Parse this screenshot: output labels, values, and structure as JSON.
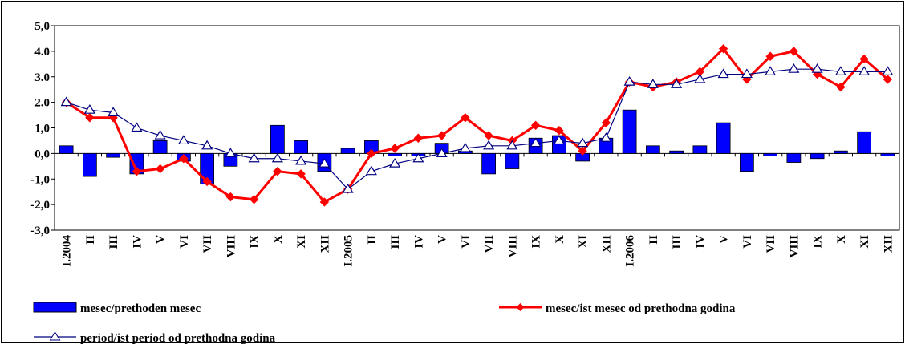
{
  "chart_data": {
    "type": "bar-line",
    "categories": [
      "I.2004",
      "II",
      "III",
      "IV",
      "V",
      "VI",
      "VII",
      "VIII",
      "IX",
      "X",
      "XI",
      "XII",
      "I.2005",
      "II",
      "III",
      "IV",
      "V",
      "VI",
      "VII",
      "VIII",
      "IX",
      "X",
      "XI",
      "XII",
      "I.2006",
      "II",
      "III",
      "IV",
      "V",
      "VI",
      "VII",
      "VIII",
      "IX",
      "X",
      "XI",
      "XII"
    ],
    "series": [
      {
        "name": "mesec/prethoden mesec",
        "type": "bar",
        "color": "#0000ff",
        "values": [
          0.3,
          -0.9,
          -0.15,
          -0.8,
          0.5,
          -0.3,
          -1.2,
          -0.5,
          0.0,
          1.1,
          0.5,
          -0.7,
          0.2,
          0.5,
          -0.1,
          -0.1,
          0.4,
          0.1,
          -0.8,
          -0.6,
          0.6,
          0.7,
          -0.3,
          0.6,
          1.7,
          0.3,
          0.1,
          0.3,
          1.2,
          -0.7,
          -0.1,
          -0.35,
          -0.2,
          0.1,
          0.85,
          -0.1
        ]
      },
      {
        "name": "mesec/ist mesec od prethodna godina",
        "type": "line",
        "marker": "diamond",
        "color": "#ff0000",
        "values": [
          2.0,
          1.4,
          1.4,
          -0.7,
          -0.6,
          -0.2,
          -1.1,
          -1.7,
          -1.8,
          -0.7,
          -0.8,
          -1.9,
          -1.4,
          0.0,
          0.2,
          0.6,
          0.7,
          1.4,
          0.7,
          0.5,
          1.1,
          0.9,
          0.1,
          1.2,
          2.8,
          2.6,
          2.8,
          3.2,
          4.1,
          2.9,
          3.8,
          4.0,
          3.1,
          2.6,
          3.7,
          2.9
        ]
      },
      {
        "name": "period/ist period od prethodna godina",
        "type": "line",
        "marker": "triangle",
        "color": "#000080",
        "values": [
          2.0,
          1.7,
          1.6,
          1.0,
          0.7,
          0.5,
          0.3,
          0.0,
          -0.2,
          -0.2,
          -0.3,
          -0.4,
          -1.4,
          -0.7,
          -0.4,
          -0.2,
          0.0,
          0.2,
          0.3,
          0.3,
          0.4,
          0.5,
          0.4,
          0.6,
          2.8,
          2.7,
          2.7,
          2.9,
          3.1,
          3.1,
          3.2,
          3.3,
          3.3,
          3.2,
          3.2,
          3.2
        ]
      }
    ],
    "ylim": [
      -3,
      5
    ],
    "yticks": [
      {
        "value": 5,
        "label": "5,0"
      },
      {
        "value": 4,
        "label": "4.0"
      },
      {
        "value": 3,
        "label": "3.0"
      },
      {
        "value": 2,
        "label": "2.0"
      },
      {
        "value": 1,
        "label": "1,0"
      },
      {
        "value": 0,
        "label": "0,0"
      },
      {
        "value": -1,
        "label": "-1,0"
      },
      {
        "value": -2,
        "label": "-2,0"
      },
      {
        "value": -3,
        "label": "-3,0"
      }
    ],
    "grid": false
  }
}
